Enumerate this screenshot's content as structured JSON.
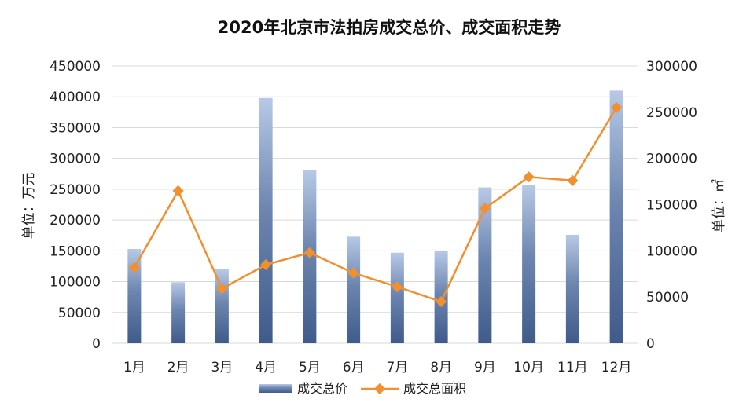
{
  "chart_data": {
    "type": "bar",
    "title": "2020年北京市法拍房成交总价、成交面积走势",
    "categories": [
      "1月",
      "2月",
      "3月",
      "4月",
      "5月",
      "6月",
      "7月",
      "8月",
      "9月",
      "10月",
      "11月",
      "12月"
    ],
    "y_left": {
      "label": "单位：万元",
      "ticks": [
        "0",
        "50000",
        "100000",
        "150000",
        "200000",
        "250000",
        "300000",
        "350000",
        "400000",
        "450000"
      ],
      "lim": [
        0,
        450000
      ]
    },
    "y_right": {
      "label": "单位：㎡",
      "ticks": [
        "0",
        "50000",
        "100000",
        "150000",
        "200000",
        "250000",
        "300000"
      ],
      "lim": [
        0,
        300000
      ]
    },
    "series": [
      {
        "name": "成交总价",
        "type": "bar",
        "axis": "left",
        "values": [
          153000,
          99000,
          120000,
          398000,
          281000,
          173000,
          147000,
          150000,
          253000,
          257000,
          176000,
          410000
        ]
      },
      {
        "name": "成交总面积",
        "type": "line",
        "axis": "right",
        "values": [
          82000,
          165000,
          59000,
          85000,
          98000,
          76000,
          61000,
          45000,
          146000,
          180000,
          176000,
          255000
        ]
      }
    ],
    "colors": {
      "bar_top": "#b7c9e6",
      "bar_bottom": "#3f5b8b",
      "line": "#f0902f"
    },
    "grid": true,
    "legend_position": "bottom"
  }
}
